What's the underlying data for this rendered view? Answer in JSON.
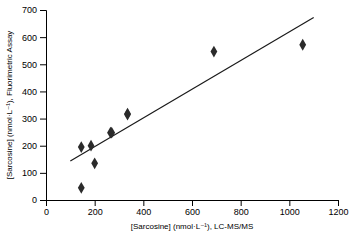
{
  "chart_data": {
    "type": "scatter",
    "xlabel": "[Sarcosine] (nmol·L⁻¹), LC-MS/MS",
    "ylabel": "[Sarcosine] (nmol·L⁻¹), Fluorimetric Assay",
    "series": [
      {
        "type": "line",
        "color": "#1a1a1a",
        "x": [
          100,
          1100
        ],
        "values": [
          143.568,
          672.071
        ]
      },
      {
        "type": "scatter",
        "marker": "diamond",
        "color": "#2b2b2b",
        "x": [
          145,
          145,
          185,
          200,
          265,
          270,
          335,
          335,
          690,
          1055
        ],
        "values": [
          195,
          45,
          200,
          135,
          248,
          248,
          318,
          315,
          547,
          572
        ]
      }
    ],
    "xlim": [
      0,
      1200
    ],
    "ylim": [
      0,
      700
    ],
    "xticks": [
      0,
      200,
      400,
      600,
      800,
      1000,
      1200
    ],
    "yticks": [
      0,
      100,
      200,
      300,
      400,
      500,
      600,
      700
    ]
  }
}
